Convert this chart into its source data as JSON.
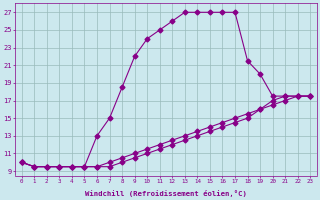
{
  "xlabel": "Windchill (Refroidissement éolien,°C)",
  "bg_color": "#cce8ee",
  "line_color": "#880088",
  "grid_color": "#99bbbb",
  "line1_x": [
    0,
    1,
    2,
    3,
    4,
    5,
    6,
    7,
    8,
    9,
    10,
    11,
    12,
    13,
    14,
    15,
    16,
    17,
    18,
    19,
    20,
    21,
    22,
    23
  ],
  "line1_y": [
    10,
    9.5,
    9.5,
    9.5,
    9.5,
    9.5,
    13,
    15,
    18.5,
    22,
    24,
    25,
    26,
    27,
    27,
    27,
    27,
    27,
    21.5,
    20,
    17.5,
    17.5,
    17.5,
    17.5
  ],
  "line2_x": [
    0,
    1,
    2,
    3,
    4,
    5,
    6,
    7,
    8,
    9,
    10,
    11,
    12,
    13,
    14,
    15,
    16,
    17,
    18,
    19,
    20,
    21,
    22,
    23
  ],
  "line2_y": [
    10,
    9.5,
    9.5,
    9.5,
    9.5,
    9.5,
    9.5,
    10,
    10.5,
    11,
    11.5,
    12,
    12.5,
    13,
    13.5,
    14,
    14.5,
    15,
    15.5,
    16,
    16.5,
    17,
    17.5,
    17.5
  ],
  "line3_x": [
    0,
    1,
    2,
    3,
    4,
    5,
    6,
    7,
    8,
    9,
    10,
    11,
    12,
    13,
    14,
    15,
    16,
    17,
    18,
    19,
    20,
    21,
    22,
    23
  ],
  "line3_y": [
    10,
    9.5,
    9.5,
    9.5,
    9.5,
    9.5,
    9.5,
    9.5,
    10,
    10.5,
    11,
    11.5,
    12,
    12.5,
    13,
    13.5,
    14,
    14.5,
    15,
    16,
    17,
    17.5,
    17.5,
    17.5
  ],
  "xlim": [
    -0.5,
    23.5
  ],
  "ylim": [
    8.5,
    28
  ],
  "yticks": [
    9,
    11,
    13,
    15,
    17,
    19,
    21,
    23,
    25,
    27
  ],
  "xticks": [
    0,
    1,
    2,
    3,
    4,
    5,
    6,
    7,
    8,
    9,
    10,
    11,
    12,
    13,
    14,
    15,
    16,
    17,
    18,
    19,
    20,
    21,
    22,
    23
  ]
}
